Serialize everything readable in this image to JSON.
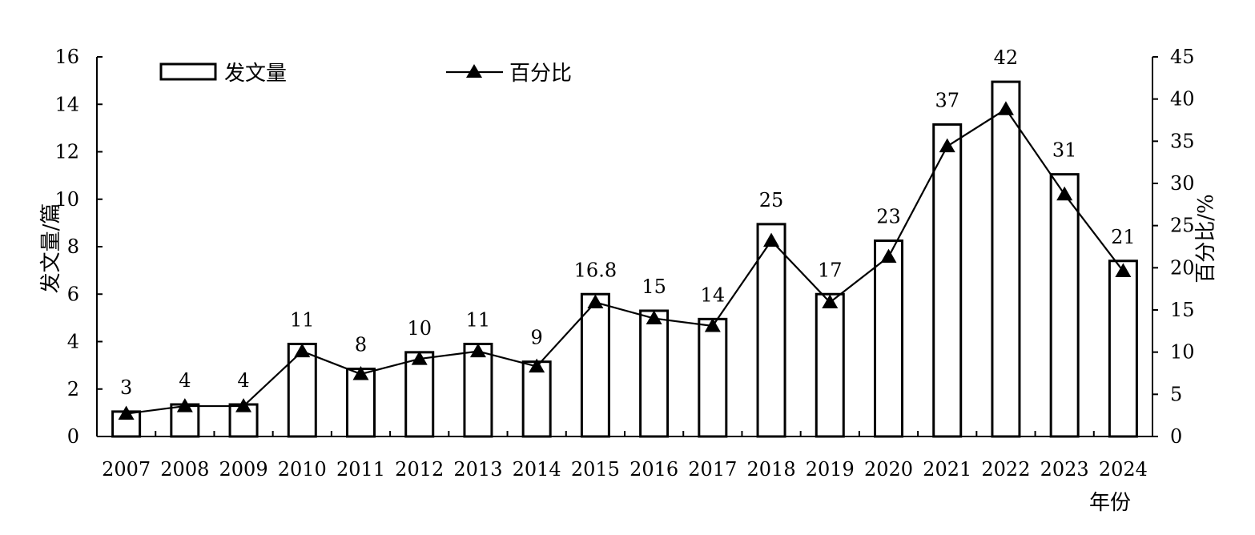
{
  "chart_data": {
    "type": "bar",
    "categories": [
      "2007",
      "2008",
      "2009",
      "2010",
      "2011",
      "2012",
      "2013",
      "2014",
      "2015",
      "2016",
      "2017",
      "2018",
      "2019",
      "2020",
      "2021",
      "2022",
      "2023",
      "2024"
    ],
    "series": [
      {
        "name": "发文量",
        "type": "bar",
        "axis": "left",
        "values": [
          1.05,
          1.35,
          1.35,
          3.9,
          2.85,
          3.55,
          3.9,
          3.15,
          6.0,
          5.3,
          4.95,
          8.95,
          6.0,
          8.25,
          13.15,
          14.95,
          11.05,
          7.4
        ]
      },
      {
        "name": "百分比",
        "type": "line",
        "axis": "right",
        "marker": "triangle",
        "values": [
          2.7,
          3.6,
          3.6,
          10.1,
          7.4,
          9.2,
          10.1,
          8.3,
          15.9,
          14.0,
          13.1,
          23.2,
          15.9,
          21.3,
          34.4,
          38.8,
          28.7,
          19.6
        ]
      }
    ],
    "data_labels": [
      "3",
      "4",
      "4",
      "11",
      "8",
      "10",
      "11",
      "9",
      "16.8",
      "15",
      "14",
      "25",
      "17",
      "23",
      "37",
      "42",
      "31",
      "21"
    ],
    "y_left": {
      "label": "发文量/篇",
      "range": [
        0,
        16
      ],
      "ticks": [
        "0",
        "2",
        "4",
        "6",
        "8",
        "10",
        "12",
        "14",
        "16"
      ]
    },
    "y_right": {
      "label": "百分比/%",
      "range": [
        0,
        45
      ],
      "ticks": [
        "0",
        "5",
        "10",
        "15",
        "20",
        "25",
        "30",
        "35",
        "40",
        "45"
      ]
    },
    "xlabel": "年份",
    "legend": {
      "placement": "top-left",
      "items": [
        "发文量",
        "百分比"
      ]
    },
    "grid": false,
    "colors": {
      "bar_fill": "#ffffff",
      "stroke": "#000000"
    }
  }
}
